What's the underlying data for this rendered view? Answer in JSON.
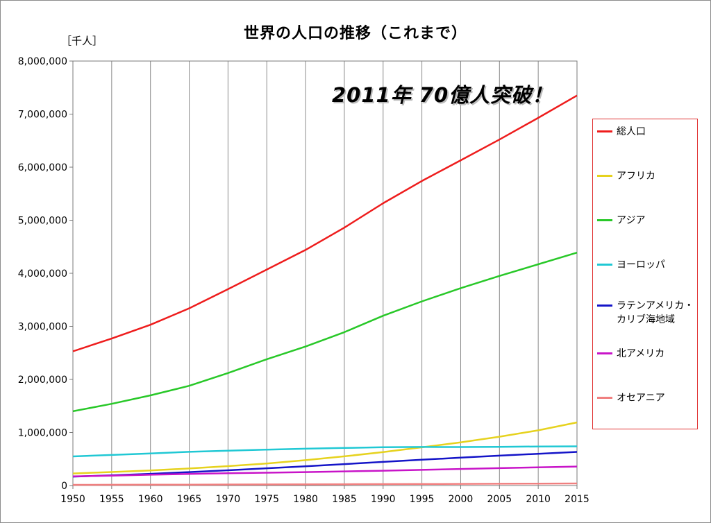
{
  "chart_data": {
    "type": "line",
    "title": "世界の人口の推移（これまで）",
    "y_unit": "［千人］",
    "annotation": "2011年 70億人突破！",
    "xlim": [
      1950,
      2015
    ],
    "ylim": [
      0,
      8000000
    ],
    "x_ticks": [
      1950,
      1955,
      1960,
      1965,
      1970,
      1975,
      1980,
      1985,
      1990,
      1995,
      2000,
      2005,
      2010,
      2015
    ],
    "y_ticks": [
      0,
      1000000,
      2000000,
      3000000,
      4000000,
      5000000,
      6000000,
      7000000,
      8000000
    ],
    "y_tick_labels": [
      "0",
      "1,000,000",
      "2,000,000",
      "3,000,000",
      "4,000,000",
      "5,000,000",
      "6,000,000",
      "7,000,000",
      "8,000,000"
    ],
    "grid": "vertical",
    "legend_position": "right",
    "x": [
      1950,
      1955,
      1960,
      1965,
      1970,
      1975,
      1980,
      1985,
      1990,
      1995,
      2000,
      2005,
      2010,
      2015
    ],
    "series": [
      {
        "name": "総人口",
        "color": "#ee1c1c",
        "values": [
          2530000,
          2770000,
          3030000,
          3340000,
          3700000,
          4070000,
          4440000,
          4860000,
          5320000,
          5740000,
          6130000,
          6520000,
          6930000,
          7350000
        ]
      },
      {
        "name": "アフリカ",
        "color": "#e6d21e",
        "values": [
          228000,
          255000,
          285000,
          322000,
          366000,
          416000,
          478000,
          550000,
          632000,
          720000,
          814000,
          920000,
          1040000,
          1190000
        ]
      },
      {
        "name": "アジア",
        "color": "#28c828",
        "values": [
          1400000,
          1540000,
          1700000,
          1880000,
          2120000,
          2380000,
          2620000,
          2890000,
          3200000,
          3470000,
          3720000,
          3950000,
          4170000,
          4390000
        ]
      },
      {
        "name": "ヨーロッパ",
        "color": "#20c8d4",
        "values": [
          549000,
          577000,
          605000,
          635000,
          657000,
          677000,
          694000,
          708000,
          721000,
          727000,
          726000,
          729000,
          736000,
          738000
        ]
      },
      {
        "name": "ラテンアメリカ・カリブ海地域",
        "color": "#1414c8",
        "values": [
          169000,
          193000,
          221000,
          253000,
          288000,
          325000,
          364000,
          404000,
          446000,
          486000,
          526000,
          563000,
          599000,
          634000
        ]
      },
      {
        "name": "北アメリカ",
        "color": "#c814c8",
        "values": [
          172000,
          187000,
          204000,
          219000,
          231000,
          242000,
          254000,
          267000,
          280000,
          296000,
          313000,
          328000,
          344000,
          358000
        ]
      },
      {
        "name": "オセアニア",
        "color": "#f08080",
        "values": [
          12700,
          14200,
          15800,
          17600,
          19700,
          21300,
          22900,
          24800,
          27000,
          29000,
          31200,
          33500,
          36500,
          39500
        ]
      }
    ]
  }
}
